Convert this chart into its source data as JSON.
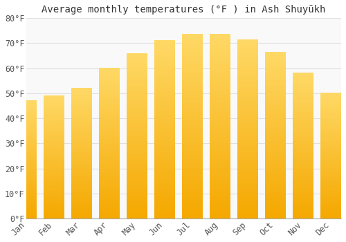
{
  "title": "Average monthly temperatures (°F ) in Ash Shuyūkh",
  "months": [
    "Jan",
    "Feb",
    "Mar",
    "Apr",
    "May",
    "Jun",
    "Jul",
    "Aug",
    "Sep",
    "Oct",
    "Nov",
    "Dec"
  ],
  "values": [
    47,
    49,
    52,
    60,
    66,
    71,
    73.5,
    73.5,
    71.5,
    66.5,
    58,
    50
  ],
  "bar_color_bottom": "#F5A800",
  "bar_color_top": "#FFD966",
  "background_color": "#FFFFFF",
  "plot_bg_color": "#F9F9F9",
  "grid_color": "#E0E0E0",
  "ylim": [
    0,
    80
  ],
  "yticks": [
    0,
    10,
    20,
    30,
    40,
    50,
    60,
    70,
    80
  ],
  "title_fontsize": 10,
  "tick_fontsize": 8.5,
  "bar_width": 0.75
}
